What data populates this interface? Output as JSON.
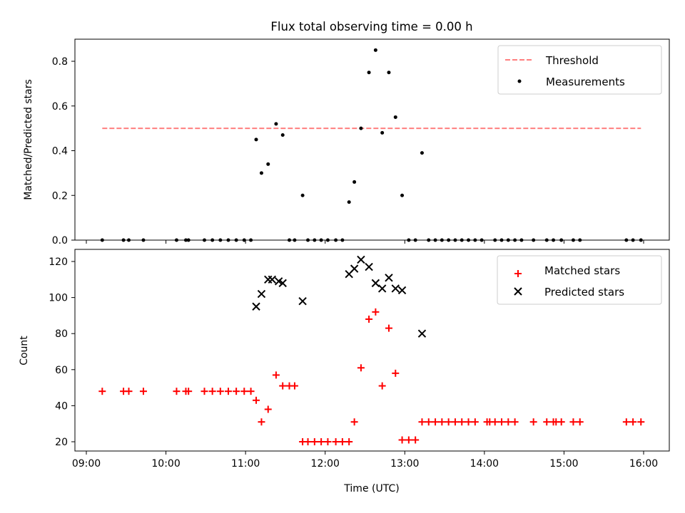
{
  "chart_data": [
    {
      "type": "scatter",
      "title": "Flux total observing time = 0.00 h",
      "xlabel": "",
      "ylabel": "Matched/Predicted stars",
      "xlim": [
        "09:00",
        "16:00"
      ],
      "ylim": [
        0,
        0.9
      ],
      "x_ticks": [
        "09:00",
        "10:00",
        "11:00",
        "12:00",
        "13:00",
        "14:00",
        "15:00",
        "16:00"
      ],
      "y_ticks": [
        {
          "value": 0.0,
          "label": "0.0"
        },
        {
          "value": 0.2,
          "label": "0.2"
        },
        {
          "value": 0.4,
          "label": "0.4"
        },
        {
          "value": 0.6,
          "label": "0.6"
        },
        {
          "value": 0.8,
          "label": "0.8"
        }
      ],
      "legend_position": "top-right",
      "grid": false,
      "series": [
        {
          "name": "Threshold",
          "kind": "dashed-line",
          "color": "#ff7f7f",
          "points": [
            {
              "x": "09:12",
              "y": 0.5
            },
            {
              "x": "15:58",
              "y": 0.5
            }
          ]
        },
        {
          "name": "Measurements",
          "kind": "dot",
          "color": "#000000",
          "points": [
            {
              "x": "09:12",
              "y": 0
            },
            {
              "x": "09:28",
              "y": 0
            },
            {
              "x": "09:32",
              "y": 0
            },
            {
              "x": "09:43",
              "y": 0
            },
            {
              "x": "10:08",
              "y": 0
            },
            {
              "x": "10:15",
              "y": 0
            },
            {
              "x": "10:17",
              "y": 0
            },
            {
              "x": "10:29",
              "y": 0
            },
            {
              "x": "10:35",
              "y": 0
            },
            {
              "x": "10:41",
              "y": 0
            },
            {
              "x": "10:47",
              "y": 0
            },
            {
              "x": "10:53",
              "y": 0
            },
            {
              "x": "10:59",
              "y": 0
            },
            {
              "x": "11:04",
              "y": 0
            },
            {
              "x": "11:08",
              "y": 0.45
            },
            {
              "x": "11:12",
              "y": 0.3
            },
            {
              "x": "11:17",
              "y": 0.34
            },
            {
              "x": "11:23",
              "y": 0.52
            },
            {
              "x": "11:28",
              "y": 0.47
            },
            {
              "x": "11:33",
              "y": 0
            },
            {
              "x": "11:37",
              "y": 0
            },
            {
              "x": "11:43",
              "y": 0.2
            },
            {
              "x": "11:47",
              "y": 0
            },
            {
              "x": "11:52",
              "y": 0
            },
            {
              "x": "11:57",
              "y": 0
            },
            {
              "x": "12:02",
              "y": 0
            },
            {
              "x": "12:08",
              "y": 0
            },
            {
              "x": "12:13",
              "y": 0
            },
            {
              "x": "12:18",
              "y": 0.17
            },
            {
              "x": "12:22",
              "y": 0.26
            },
            {
              "x": "12:27",
              "y": 0.5
            },
            {
              "x": "12:33",
              "y": 0.75
            },
            {
              "x": "12:38",
              "y": 0.85
            },
            {
              "x": "12:43",
              "y": 0.48
            },
            {
              "x": "12:48",
              "y": 0.75
            },
            {
              "x": "12:53",
              "y": 0.55
            },
            {
              "x": "12:58",
              "y": 0.2
            },
            {
              "x": "13:03",
              "y": 0
            },
            {
              "x": "13:08",
              "y": 0
            },
            {
              "x": "13:13",
              "y": 0.39
            },
            {
              "x": "13:18",
              "y": 0
            },
            {
              "x": "13:23",
              "y": 0
            },
            {
              "x": "13:28",
              "y": 0
            },
            {
              "x": "13:33",
              "y": 0
            },
            {
              "x": "13:38",
              "y": 0
            },
            {
              "x": "13:43",
              "y": 0
            },
            {
              "x": "13:48",
              "y": 0
            },
            {
              "x": "13:53",
              "y": 0
            },
            {
              "x": "13:58",
              "y": 0
            },
            {
              "x": "14:08",
              "y": 0
            },
            {
              "x": "14:13",
              "y": 0
            },
            {
              "x": "14:18",
              "y": 0
            },
            {
              "x": "14:23",
              "y": 0
            },
            {
              "x": "14:28",
              "y": 0
            },
            {
              "x": "14:37",
              "y": 0
            },
            {
              "x": "14:47",
              "y": 0
            },
            {
              "x": "14:52",
              "y": 0
            },
            {
              "x": "14:58",
              "y": 0
            },
            {
              "x": "15:07",
              "y": 0
            },
            {
              "x": "15:12",
              "y": 0
            },
            {
              "x": "15:47",
              "y": 0
            },
            {
              "x": "15:52",
              "y": 0
            },
            {
              "x": "15:58",
              "y": 0
            }
          ]
        }
      ]
    },
    {
      "type": "scatter",
      "title": "",
      "xlabel": "Time (UTC)",
      "ylabel": "Count",
      "xlim": [
        "09:00",
        "16:00"
      ],
      "ylim": [
        15,
        127
      ],
      "x_ticks": [
        "09:00",
        "10:00",
        "11:00",
        "12:00",
        "13:00",
        "14:00",
        "15:00",
        "16:00"
      ],
      "y_ticks": [
        {
          "value": 20,
          "label": "20"
        },
        {
          "value": 40,
          "label": "40"
        },
        {
          "value": 60,
          "label": "60"
        },
        {
          "value": 80,
          "label": "80"
        },
        {
          "value": 100,
          "label": "100"
        },
        {
          "value": 120,
          "label": "120"
        }
      ],
      "legend_position": "top-right",
      "grid": false,
      "series": [
        {
          "name": "Matched stars",
          "kind": "plus",
          "color": "#ff0000",
          "points": [
            {
              "x": "09:12",
              "y": 48
            },
            {
              "x": "09:28",
              "y": 48
            },
            {
              "x": "09:32",
              "y": 48
            },
            {
              "x": "09:43",
              "y": 48
            },
            {
              "x": "10:08",
              "y": 48
            },
            {
              "x": "10:15",
              "y": 48
            },
            {
              "x": "10:17",
              "y": 48
            },
            {
              "x": "10:29",
              "y": 48
            },
            {
              "x": "10:35",
              "y": 48
            },
            {
              "x": "10:41",
              "y": 48
            },
            {
              "x": "10:47",
              "y": 48
            },
            {
              "x": "10:53",
              "y": 48
            },
            {
              "x": "10:59",
              "y": 48
            },
            {
              "x": "11:04",
              "y": 48
            },
            {
              "x": "11:08",
              "y": 43
            },
            {
              "x": "11:12",
              "y": 31
            },
            {
              "x": "11:17",
              "y": 38
            },
            {
              "x": "11:23",
              "y": 57
            },
            {
              "x": "11:28",
              "y": 51
            },
            {
              "x": "11:33",
              "y": 51
            },
            {
              "x": "11:37",
              "y": 51
            },
            {
              "x": "11:43",
              "y": 20
            },
            {
              "x": "11:47",
              "y": 20
            },
            {
              "x": "11:52",
              "y": 20
            },
            {
              "x": "11:57",
              "y": 20
            },
            {
              "x": "12:02",
              "y": 20
            },
            {
              "x": "12:08",
              "y": 20
            },
            {
              "x": "12:13",
              "y": 20
            },
            {
              "x": "12:18",
              "y": 20
            },
            {
              "x": "12:22",
              "y": 31
            },
            {
              "x": "12:27",
              "y": 61
            },
            {
              "x": "12:33",
              "y": 88
            },
            {
              "x": "12:38",
              "y": 92
            },
            {
              "x": "12:43",
              "y": 51
            },
            {
              "x": "12:48",
              "y": 83
            },
            {
              "x": "12:53",
              "y": 58
            },
            {
              "x": "12:58",
              "y": 21
            },
            {
              "x": "13:03",
              "y": 21
            },
            {
              "x": "13:08",
              "y": 21
            },
            {
              "x": "13:13",
              "y": 31
            },
            {
              "x": "13:18",
              "y": 31
            },
            {
              "x": "13:23",
              "y": 31
            },
            {
              "x": "13:28",
              "y": 31
            },
            {
              "x": "13:33",
              "y": 31
            },
            {
              "x": "13:38",
              "y": 31
            },
            {
              "x": "13:43",
              "y": 31
            },
            {
              "x": "13:48",
              "y": 31
            },
            {
              "x": "13:53",
              "y": 31
            },
            {
              "x": "14:02",
              "y": 31
            },
            {
              "x": "14:04",
              "y": 31
            },
            {
              "x": "14:08",
              "y": 31
            },
            {
              "x": "14:13",
              "y": 31
            },
            {
              "x": "14:18",
              "y": 31
            },
            {
              "x": "14:23",
              "y": 31
            },
            {
              "x": "14:37",
              "y": 31
            },
            {
              "x": "14:47",
              "y": 31
            },
            {
              "x": "14:52",
              "y": 31
            },
            {
              "x": "14:54",
              "y": 31
            },
            {
              "x": "14:58",
              "y": 31
            },
            {
              "x": "15:07",
              "y": 31
            },
            {
              "x": "15:12",
              "y": 31
            },
            {
              "x": "15:47",
              "y": 31
            },
            {
              "x": "15:52",
              "y": 31
            },
            {
              "x": "15:58",
              "y": 31
            }
          ]
        },
        {
          "name": "Predicted stars",
          "kind": "x",
          "color": "#000000",
          "points": [
            {
              "x": "11:08",
              "y": 95
            },
            {
              "x": "11:12",
              "y": 102
            },
            {
              "x": "11:17",
              "y": 110
            },
            {
              "x": "11:20",
              "y": 110
            },
            {
              "x": "11:25",
              "y": 109
            },
            {
              "x": "11:28",
              "y": 108
            },
            {
              "x": "11:43",
              "y": 98
            },
            {
              "x": "12:18",
              "y": 113
            },
            {
              "x": "12:22",
              "y": 116
            },
            {
              "x": "12:27",
              "y": 121
            },
            {
              "x": "12:33",
              "y": 117
            },
            {
              "x": "12:38",
              "y": 108
            },
            {
              "x": "12:43",
              "y": 105
            },
            {
              "x": "12:48",
              "y": 111
            },
            {
              "x": "12:53",
              "y": 105
            },
            {
              "x": "12:58",
              "y": 104
            },
            {
              "x": "13:13",
              "y": 80
            }
          ]
        }
      ]
    }
  ]
}
